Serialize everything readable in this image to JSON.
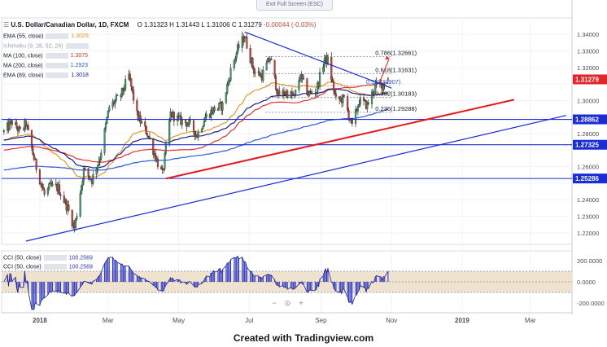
{
  "exit_label": "Exit Full Screen (ESC)",
  "header": {
    "symbol": "U.S. Dollar/Canadian Dollar, 1D, FXCM",
    "open": "O 1.31323",
    "high": "H 1.31443",
    "low": "L 1.31006",
    "close": "C 1.31279",
    "change": "-0.00044 (-0.03%)"
  },
  "indicators": [
    {
      "label": "EMA (55, close)",
      "value": "1.3029",
      "color": "#e9962c"
    },
    {
      "label": "Ichimoku (9, 26, 52, 26)",
      "value": "",
      "color": "#9aa0ae"
    },
    {
      "label": "MA (100, close)",
      "value": "1.3075",
      "color": "#e3302b"
    },
    {
      "label": "MA (200, close)",
      "value": "1.2923",
      "color": "#2b5ad6"
    },
    {
      "label": "EMA (89, close)",
      "value": "1.3018",
      "color": "#121e88"
    }
  ],
  "cci_labels": [
    {
      "label": "CCI (50, close)",
      "value": "100.2569"
    },
    {
      "label": "CCI (50, close)",
      "value": "100.2569"
    }
  ],
  "footer": "Created with Tradingview.com",
  "zoom": {
    "minus": "−",
    "reset": "⊙",
    "plus": "+"
  },
  "colors": {
    "up": "#3d9a66",
    "down": "#cc3b33",
    "trend_blue": "#1a2bd8",
    "trend_red": "#e41b1b",
    "cci_fill": "#2a34c8",
    "band": "#efe3cf"
  },
  "chart_data": {
    "type": "candlestick",
    "symbol": "USDCAD",
    "timeframe": "1D",
    "ylim": [
      1.215,
      1.347
    ],
    "price_ticks": [
      1.22,
      1.23,
      1.24,
      1.25,
      1.26,
      1.27,
      1.28,
      1.29,
      1.3,
      1.31,
      1.32,
      1.33,
      1.34
    ],
    "price_tick_labels": [
      "1.22000",
      "1.23000",
      "1.24000",
      "1.25000",
      "1.26000",
      "1.27000",
      "1.28000",
      "1.29000",
      "1.30000",
      "1.31000",
      "1.32000",
      "1.33000",
      "1.34000"
    ],
    "x_labels": [
      {
        "date": "2018-01-01",
        "label": "2018"
      },
      {
        "date": "2018-03-01",
        "label": "Mar"
      },
      {
        "date": "2018-05-01",
        "label": "May"
      },
      {
        "date": "2018-07-01",
        "label": "Jul"
      },
      {
        "date": "2018-09-01",
        "label": "Sep"
      },
      {
        "date": "2018-11-01",
        "label": "Nov"
      },
      {
        "date": "2019-01-01",
        "label": "2019"
      },
      {
        "date": "2019-03-01",
        "label": "Mar"
      }
    ],
    "price_path": [
      [
        "2017-12-01",
        1.281
      ],
      [
        "2017-12-08",
        1.287
      ],
      [
        "2017-12-15",
        1.281
      ],
      [
        "2017-12-20",
        1.286
      ],
      [
        "2017-12-28",
        1.262
      ],
      [
        "2018-01-05",
        1.243
      ],
      [
        "2018-01-10",
        1.248
      ],
      [
        "2018-01-17",
        1.247
      ],
      [
        "2018-01-25",
        1.235
      ],
      [
        "2018-01-31",
        1.223
      ],
      [
        "2018-02-08",
        1.258
      ],
      [
        "2018-02-15",
        1.252
      ],
      [
        "2018-02-22",
        1.266
      ],
      [
        "2018-03-02",
        1.296
      ],
      [
        "2018-03-12",
        1.303
      ],
      [
        "2018-03-19",
        1.315
      ],
      [
        "2018-03-26",
        1.291
      ],
      [
        "2018-04-04",
        1.28
      ],
      [
        "2018-04-12",
        1.264
      ],
      [
        "2018-04-17",
        1.255
      ],
      [
        "2018-04-24",
        1.292
      ],
      [
        "2018-05-02",
        1.288
      ],
      [
        "2018-05-10",
        1.286
      ],
      [
        "2018-05-17",
        1.279
      ],
      [
        "2018-05-24",
        1.29
      ],
      [
        "2018-06-01",
        1.295
      ],
      [
        "2018-06-08",
        1.297
      ],
      [
        "2018-06-15",
        1.318
      ],
      [
        "2018-06-21",
        1.331
      ],
      [
        "2018-06-27",
        1.339
      ],
      [
        "2018-07-05",
        1.318
      ],
      [
        "2018-07-12",
        1.315
      ],
      [
        "2018-07-19",
        1.326
      ],
      [
        "2018-07-26",
        1.303
      ],
      [
        "2018-08-02",
        1.305
      ],
      [
        "2018-08-09",
        1.302
      ],
      [
        "2018-08-14",
        1.315
      ],
      [
        "2018-08-21",
        1.304
      ],
      [
        "2018-08-28",
        1.306
      ],
      [
        "2018-09-04",
        1.325
      ],
      [
        "2018-09-07",
        1.324
      ],
      [
        "2018-09-14",
        1.3
      ],
      [
        "2018-09-21",
        1.301
      ],
      [
        "2018-09-28",
        1.284
      ],
      [
        "2018-10-04",
        1.3
      ],
      [
        "2018-10-11",
        1.297
      ],
      [
        "2018-10-18",
        1.309
      ],
      [
        "2018-10-24",
        1.309
      ],
      [
        "2018-10-29",
        1.314
      ]
    ],
    "horizontal_levels": [
      {
        "price": 1.28862,
        "label": "1.28862"
      },
      {
        "price": 1.27325,
        "label": "1.27325"
      },
      {
        "price": 1.25286,
        "label": "1.25286"
      }
    ],
    "current_price": {
      "price": 1.31279,
      "label": "1.31279"
    },
    "fibonacci": [
      {
        "level": "0.786",
        "price": 1.32661,
        "label": "0.786(1.32661)"
      },
      {
        "level": "0.618",
        "price": 1.31631,
        "label": "0.618(1.31631)"
      },
      {
        "level": "0.5",
        "price": 1.30907,
        "label": "0.5(1.30907)"
      },
      {
        "level": "0.382",
        "price": 1.30183,
        "label": "0.382(1.30183)"
      },
      {
        "level": "0.236",
        "price": 1.29288,
        "label": "0.236(1.29288)"
      }
    ],
    "trendlines": [
      {
        "color": "blue",
        "from": [
          "2017-12-20",
          1.215
        ],
        "to": [
          "2019-04-01",
          1.291
        ]
      },
      {
        "color": "blue",
        "from": [
          "2018-06-27",
          1.3415
        ],
        "to": [
          "2018-11-01",
          1.3075
        ]
      },
      {
        "color": "red",
        "from": [
          "2018-04-20",
          1.2528
        ],
        "to": [
          "2019-02-15",
          1.3005
        ]
      }
    ],
    "moving_averages": [
      {
        "name": "EMA (55, close)",
        "value": 1.3029
      },
      {
        "name": "MA (100, close)",
        "value": 1.3075
      },
      {
        "name": "MA (200, close)",
        "value": 1.2923
      },
      {
        "name": "EMA (89, close)",
        "value": 1.3018
      }
    ],
    "cci": {
      "name": "CCI (50, close)",
      "value": 100.2569,
      "ylim": [
        -260,
        260
      ],
      "band": [
        -100,
        100
      ],
      "ticks": [
        200,
        0,
        -200
      ],
      "tick_labels": [
        "200.0000",
        "0.0000",
        "-200.0000"
      ]
    }
  }
}
